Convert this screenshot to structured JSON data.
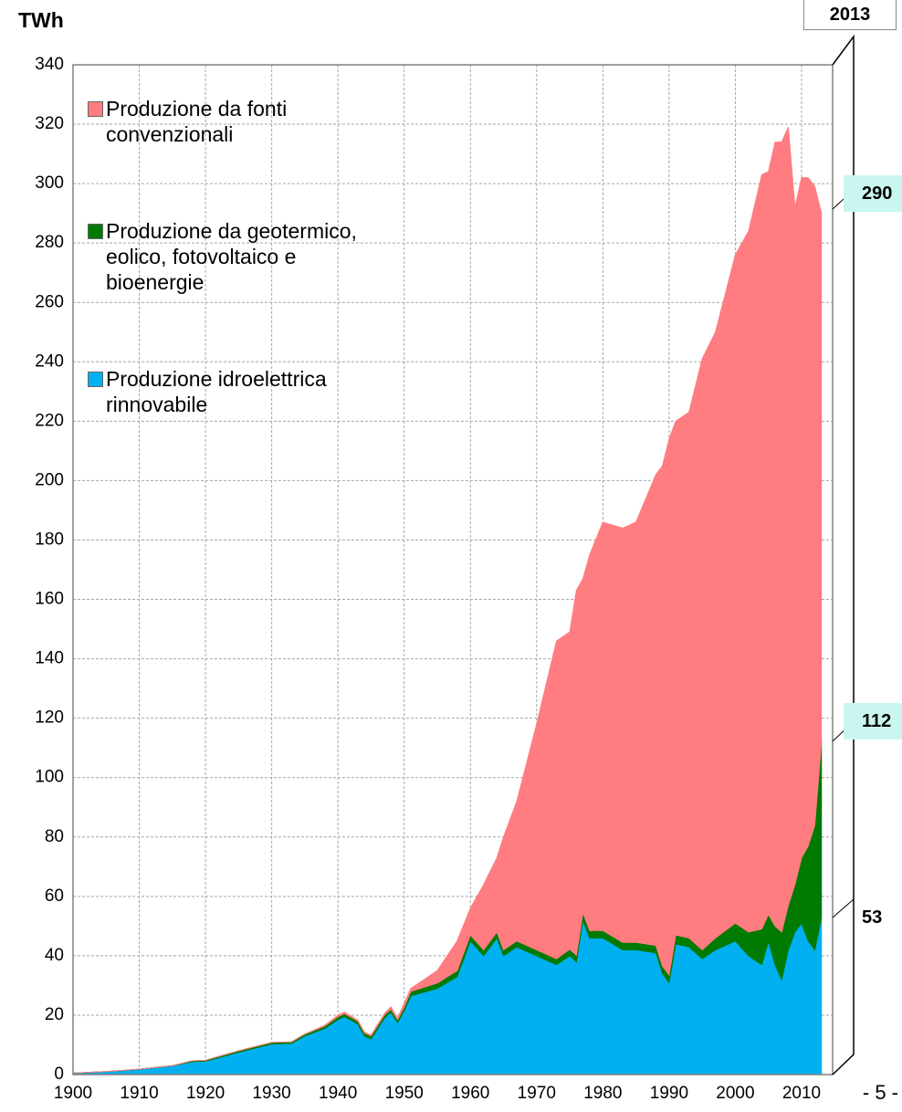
{
  "chart_data": {
    "type": "stacked_area",
    "y_label": "TWh",
    "page_number": "- 5 -",
    "annotations": [
      "2013",
      "290",
      "112",
      "53"
    ],
    "x": [
      1900,
      1905,
      1910,
      1915,
      1918,
      1920,
      1925,
      1930,
      1933,
      1935,
      1938,
      1940,
      1941,
      1943,
      1944,
      1945,
      1947,
      1948,
      1949,
      1950,
      1951,
      1955,
      1958,
      1960,
      1962,
      1964,
      1965,
      1967,
      1970,
      1973,
      1975,
      1976,
      1977,
      1978,
      1980,
      1983,
      1985,
      1988,
      1989,
      1990,
      1991,
      1993,
      1995,
      1997,
      2000,
      2002,
      2004,
      2005,
      2006,
      2007,
      2008,
      2009,
      2010,
      2011,
      2012,
      2013
    ],
    "series": [
      {
        "name": "Produzione idroelettrica rinnovabile",
        "color": "#00b0f0",
        "values": [
          0.5,
          1,
          1.8,
          3,
          4.3,
          4.5,
          7.5,
          10.3,
          10.5,
          13,
          15.5,
          18.5,
          19.5,
          17,
          13,
          12,
          19,
          21,
          17.5,
          21.5,
          26.5,
          29,
          33,
          45,
          40,
          46,
          40,
          43,
          40,
          37,
          40,
          38,
          52,
          46,
          46,
          42,
          42,
          41,
          34,
          31,
          44,
          43,
          39,
          42,
          45,
          40,
          37,
          45,
          37,
          32,
          42,
          48,
          51,
          45,
          42,
          53
        ]
      },
      {
        "name": "Produzione da geotermico, eolico, fotovoltaico e bioenergie",
        "color": "#007a00",
        "values": [
          0,
          0,
          0,
          0,
          0.3,
          0.3,
          0.5,
          0.5,
          0.5,
          0.6,
          0.8,
          1,
          1,
          1,
          1,
          1,
          1,
          1,
          1,
          1.2,
          1.5,
          1.8,
          2,
          2,
          2,
          2,
          2,
          2,
          2,
          2,
          2.2,
          2.2,
          2.5,
          2.5,
          2.5,
          2.5,
          2.5,
          2.5,
          2.5,
          2.5,
          3,
          3,
          3,
          4,
          6,
          8,
          12,
          9,
          13,
          16,
          15,
          16,
          22,
          32,
          42,
          59
        ]
      },
      {
        "name": "Produzione da fonti convenzionali",
        "color": "#ff7c80",
        "values": [
          0,
          0,
          0,
          0,
          0,
          0,
          0,
          0,
          0,
          0,
          0.3,
          0.5,
          0.5,
          0.3,
          0.3,
          0.3,
          0.5,
          0.8,
          0.5,
          1.3,
          1,
          4.2,
          10,
          9,
          22,
          25,
          38,
          47,
          76,
          107,
          106.8,
          122.8,
          112.5,
          126.5,
          137.5,
          139.5,
          141.5,
          158.5,
          168.5,
          180.5,
          173,
          177,
          199,
          204,
          225,
          236,
          254,
          250,
          264,
          266,
          262,
          228,
          229,
          225,
          215,
          178
        ]
      }
    ],
    "xlim": [
      1900,
      2014
    ],
    "ylim": [
      0,
      340
    ],
    "xticks": [
      1900,
      1910,
      1920,
      1930,
      1940,
      1950,
      1960,
      1970,
      1980,
      1990,
      2000,
      2010
    ],
    "yticks": [
      0,
      20,
      40,
      60,
      80,
      100,
      120,
      140,
      160,
      180,
      200,
      220,
      240,
      260,
      280,
      300,
      320,
      340
    ],
    "grid": true,
    "legend": "upper left"
  }
}
